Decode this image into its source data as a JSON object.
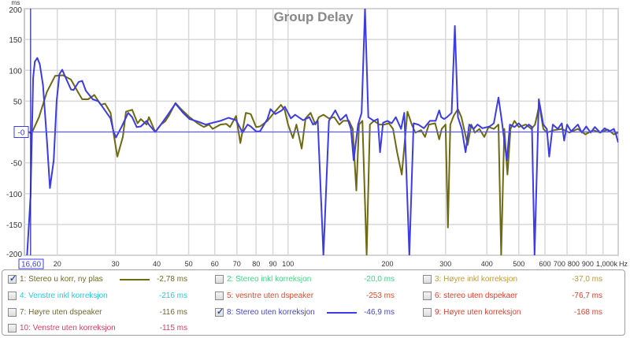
{
  "chart_data": {
    "type": "line",
    "title": "Group Delay",
    "ylabel": "ms",
    "xlabel": "Hz",
    "xscale": "log",
    "xlim": [
      15.9,
      1000
    ],
    "ylim": [
      -200,
      200
    ],
    "grid": true,
    "yticks": [
      200,
      150,
      100,
      50,
      -50,
      -100,
      -150,
      -200
    ],
    "ytick_labels": [
      "200",
      "150",
      "100",
      "50",
      "-50",
      "-100",
      "-150",
      "-200"
    ],
    "y_cursor_label": "-0",
    "y_cursor_value": 0,
    "x_cursor_label": "16,60",
    "x_cursor_value": 16.6,
    "xticks": [
      20,
      30,
      40,
      50,
      60,
      70,
      80,
      90,
      100,
      200,
      300,
      400,
      500,
      600,
      700,
      800,
      900,
      1000
    ],
    "xtick_labels": [
      "20",
      "30",
      "40",
      "50",
      "60",
      "70",
      "80",
      "90",
      "100",
      "200",
      "300",
      "400",
      "500",
      "600",
      "700",
      "800",
      "900",
      "1,000k"
    ],
    "series": [
      {
        "name": "1: Stereo u korr, ny plas",
        "color": "#6e6a10",
        "points": [
          [
            15.9,
            5
          ],
          [
            16.7,
            -3
          ],
          [
            17.6,
            24
          ],
          [
            18.6,
            65
          ],
          [
            19.7,
            91
          ],
          [
            20.8,
            92
          ],
          [
            22.0,
            85
          ],
          [
            23.2,
            63
          ],
          [
            23.8,
            53
          ],
          [
            24.8,
            53
          ],
          [
            25.9,
            60
          ],
          [
            27.1,
            44
          ],
          [
            27.9,
            46
          ],
          [
            29.0,
            31
          ],
          [
            29.6,
            -1
          ],
          [
            30.4,
            -40
          ],
          [
            31.6,
            -8
          ],
          [
            32.3,
            33
          ],
          [
            33.7,
            36
          ],
          [
            35,
            14
          ],
          [
            35.8,
            21
          ],
          [
            37.3,
            12
          ],
          [
            37.9,
            24
          ],
          [
            39.6,
            0
          ],
          [
            41.2,
            12
          ],
          [
            42.4,
            17
          ],
          [
            43.6,
            27
          ],
          [
            45.6,
            47
          ],
          [
            47.4,
            37
          ],
          [
            50.3,
            24
          ],
          [
            53.2,
            14
          ],
          [
            55.6,
            8
          ],
          [
            57.6,
            12
          ],
          [
            59.1,
            5
          ],
          [
            62.4,
            12
          ],
          [
            65,
            13
          ],
          [
            66.7,
            8
          ],
          [
            69.6,
            26
          ],
          [
            71.7,
            -18
          ],
          [
            74.5,
            31
          ],
          [
            77.1,
            29
          ],
          [
            80,
            8
          ],
          [
            82.2,
            9
          ],
          [
            86.6,
            18
          ],
          [
            90,
            29
          ],
          [
            95.2,
            44
          ],
          [
            97.8,
            35
          ],
          [
            100,
            12
          ],
          [
            103.4,
            -10
          ],
          [
            106,
            12
          ],
          [
            110,
            -27
          ],
          [
            113,
            22
          ],
          [
            117,
            31
          ],
          [
            121,
            12
          ],
          [
            124,
            24
          ],
          [
            128,
            28
          ],
          [
            133,
            22
          ],
          [
            138,
            24
          ],
          [
            143,
            12
          ],
          [
            147,
            18
          ],
          [
            153,
            18
          ],
          [
            157,
            5
          ],
          [
            161,
            -95
          ],
          [
            164,
            12
          ],
          [
            168,
            18
          ],
          [
            173,
            -200
          ],
          [
            177,
            12
          ],
          [
            182,
            18
          ],
          [
            189,
            12
          ],
          [
            196,
            12
          ],
          [
            202,
            14
          ],
          [
            208,
            5
          ],
          [
            214,
            -33
          ],
          [
            221,
            -69
          ],
          [
            230,
            33
          ],
          [
            237,
            12
          ],
          [
            243,
            -1
          ],
          [
            253,
            3
          ],
          [
            260,
            -8
          ],
          [
            267,
            12
          ],
          [
            279,
            14
          ],
          [
            287,
            -12
          ],
          [
            292,
            5
          ],
          [
            300,
            12
          ],
          [
            305,
            -155
          ],
          [
            310,
            12
          ],
          [
            318,
            27
          ],
          [
            327,
            37
          ],
          [
            335,
            24
          ],
          [
            350,
            -21
          ],
          [
            359,
            12
          ],
          [
            368,
            -1
          ],
          [
            380,
            5
          ],
          [
            393,
            -8
          ],
          [
            405,
            8
          ],
          [
            420,
            5
          ],
          [
            434,
            12
          ],
          [
            442,
            -200
          ],
          [
            452,
            5
          ],
          [
            462,
            -69
          ],
          [
            472,
            5
          ],
          [
            485,
            18
          ],
          [
            500,
            8
          ],
          [
            525,
            12
          ],
          [
            546,
            5
          ],
          [
            560,
            12
          ],
          [
            577,
            44
          ],
          [
            593,
            5
          ],
          [
            608,
            -1
          ],
          [
            640,
            3
          ],
          [
            675,
            5
          ],
          [
            712,
            -1
          ],
          [
            755,
            5
          ],
          [
            795,
            -4
          ],
          [
            840,
            3
          ],
          [
            882,
            -1
          ],
          [
            930,
            4
          ],
          [
            970,
            -4
          ],
          [
            1000,
            -1
          ]
        ]
      },
      {
        "name": "8: Stereo uten korreksjon",
        "color": "#3c3ce6",
        "points": [
          [
            16.2,
            -200
          ],
          [
            16.6,
            -104
          ],
          [
            16.9,
            88
          ],
          [
            17.1,
            114
          ],
          [
            17.4,
            120
          ],
          [
            17.7,
            110
          ],
          [
            18.1,
            76
          ],
          [
            18.6,
            -14
          ],
          [
            19.0,
            -91
          ],
          [
            19.5,
            -46
          ],
          [
            19.9,
            50
          ],
          [
            20.3,
            94
          ],
          [
            20.7,
            101
          ],
          [
            21.2,
            88
          ],
          [
            22.0,
            69
          ],
          [
            22.4,
            68
          ],
          [
            23.2,
            81
          ],
          [
            23.8,
            83
          ],
          [
            24.4,
            67
          ],
          [
            25.6,
            53
          ],
          [
            26.6,
            50
          ],
          [
            27.3,
            42
          ],
          [
            29.0,
            22
          ],
          [
            29.6,
            1
          ],
          [
            30.1,
            -9
          ],
          [
            31.3,
            8
          ],
          [
            32.8,
            31
          ],
          [
            33.7,
            24
          ],
          [
            34.8,
            8
          ],
          [
            35.8,
            9
          ],
          [
            37.3,
            18
          ],
          [
            37.9,
            12
          ],
          [
            39.6,
            0
          ],
          [
            41.2,
            12
          ],
          [
            43.1,
            27
          ],
          [
            45.6,
            46
          ],
          [
            48.1,
            31
          ],
          [
            50.3,
            21
          ],
          [
            53.2,
            17
          ],
          [
            56.3,
            12
          ],
          [
            59.1,
            15
          ],
          [
            62.4,
            18
          ],
          [
            66,
            23
          ],
          [
            69.6,
            19
          ],
          [
            72.8,
            -1
          ],
          [
            75.4,
            12
          ],
          [
            77.1,
            9
          ],
          [
            80,
            1
          ],
          [
            82.2,
            1
          ],
          [
            86.6,
            21
          ],
          [
            88.5,
            37
          ],
          [
            91.5,
            29
          ],
          [
            95.7,
            35
          ],
          [
            97.8,
            41
          ],
          [
            102,
            22
          ],
          [
            105,
            28
          ],
          [
            111,
            19
          ],
          [
            116,
            24
          ],
          [
            119,
            12
          ],
          [
            123,
            18
          ],
          [
            128,
            -200
          ],
          [
            133,
            18
          ],
          [
            139,
            35
          ],
          [
            144,
            19
          ],
          [
            150,
            28
          ],
          [
            155,
            5
          ],
          [
            158,
            -46
          ],
          [
            163,
            12
          ],
          [
            167,
            31
          ],
          [
            171,
            200
          ],
          [
            175,
            24
          ],
          [
            182,
            18
          ],
          [
            187,
            21
          ],
          [
            190,
            -33
          ],
          [
            194,
            15
          ],
          [
            200,
            18
          ],
          [
            206,
            14
          ],
          [
            212,
            24
          ],
          [
            220,
            5
          ],
          [
            225,
            31
          ],
          [
            233,
            -200
          ],
          [
            240,
            14
          ],
          [
            248,
            12
          ],
          [
            258,
            6
          ],
          [
            269,
            18
          ],
          [
            280,
            18
          ],
          [
            287,
            35
          ],
          [
            291,
            24
          ],
          [
            297,
            21
          ],
          [
            303,
            24
          ],
          [
            313,
            31
          ],
          [
            320,
            172
          ],
          [
            327,
            24
          ],
          [
            336,
            5
          ],
          [
            345,
            -33
          ],
          [
            354,
            12
          ],
          [
            365,
            5
          ],
          [
            375,
            12
          ],
          [
            388,
            6
          ],
          [
            408,
            9
          ],
          [
            420,
            14
          ],
          [
            434,
            56
          ],
          [
            444,
            18
          ],
          [
            460,
            -46
          ],
          [
            470,
            12
          ],
          [
            485,
            8
          ],
          [
            500,
            14
          ],
          [
            518,
            5
          ],
          [
            536,
            12
          ],
          [
            548,
            8
          ],
          [
            558,
            -200
          ],
          [
            575,
            53
          ],
          [
            593,
            12
          ],
          [
            608,
            5
          ],
          [
            618,
            -40
          ],
          [
            634,
            12
          ],
          [
            656,
            5
          ],
          [
            675,
            14
          ],
          [
            686,
            -14
          ],
          [
            700,
            12
          ],
          [
            720,
            1
          ],
          [
            755,
            12
          ],
          [
            776,
            -1
          ],
          [
            800,
            9
          ],
          [
            825,
            -1
          ],
          [
            850,
            8
          ],
          [
            882,
            -1
          ],
          [
            910,
            6
          ],
          [
            940,
            1
          ],
          [
            970,
            5
          ],
          [
            985,
            -4
          ],
          [
            1000,
            -17
          ]
        ]
      }
    ]
  },
  "legend": {
    "items": [
      {
        "label": "1: Stereo u korr, ny plas",
        "value": "-2,78 ms",
        "checked": true,
        "color": "#6e6a20",
        "swatch": "#6e6a10"
      },
      {
        "label": "2: Stereo inkl korreksjon",
        "value": "-20,0 ms",
        "checked": false,
        "color": "#3cd884"
      },
      {
        "label": "3: Høyre inkl korreksjon",
        "value": "-37,0 ms",
        "checked": false,
        "color": "#c09a3a"
      },
      {
        "label": "4: Venstre inkl korreksjon",
        "value": "-216 ms",
        "checked": false,
        "color": "#28c8e0"
      },
      {
        "label": "5: vesntre uten dspeaker",
        "value": "-253 ms",
        "checked": false,
        "color": "#e04a28"
      },
      {
        "label": "6: stereo uten dspekaer",
        "value": "-76,7 ms",
        "checked": false,
        "color": "#e03c28"
      },
      {
        "label": "7: Høyre uten dspeaker",
        "value": "-116 ms",
        "checked": false,
        "color": "#6e6a30"
      },
      {
        "label": "8: Stereo uten korreksjon",
        "value": "-46,9 ms",
        "checked": true,
        "color": "#4646d0",
        "swatch": "#3c3ce6"
      },
      {
        "label": "9: Høyre uten korreksjon",
        "value": "-168 ms",
        "checked": false,
        "color": "#e04030"
      },
      {
        "label": "10: Venstre uten korreksjon",
        "value": "-115 ms",
        "checked": false,
        "color": "#e03c64"
      }
    ]
  }
}
